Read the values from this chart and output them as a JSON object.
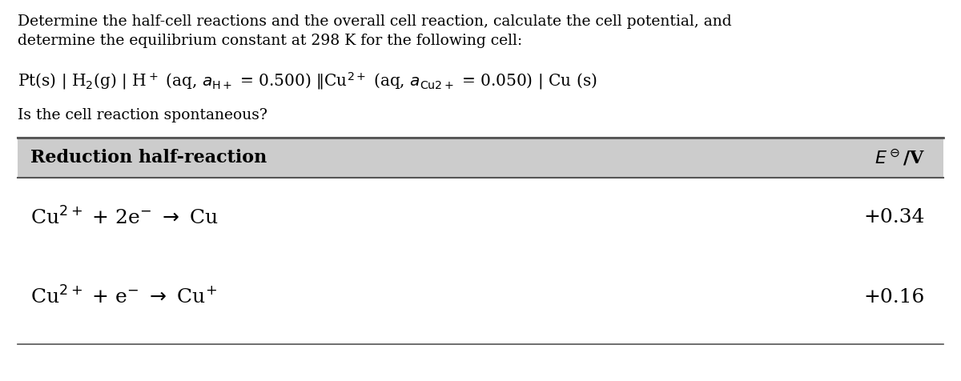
{
  "title_line1": "Determine the half-cell reactions and the overall cell reaction, calculate the cell potential, and",
  "title_line2": "determine the equilibrium constant at 298 K for the following cell:",
  "question": "Is the cell reaction spontaneous?",
  "table_header_left": "Reduction half-reaction",
  "table_header_right": "$E^\\ominus$/V",
  "row1_reaction": "Cu$^{2+}$ + 2e$^{-}$ $\\rightarrow$ Cu",
  "row1_value": "+0.34",
  "row2_reaction": "Cu$^{2+}$ + e$^{-}$ $\\rightarrow$ Cu$^{+}$",
  "row2_value": "+0.16",
  "header_bg": "#cccccc",
  "row_bg": "#ffffff",
  "text_color": "#000000",
  "border_color": "#555555",
  "bg_color": "#ffffff",
  "font_size_body": 13.5,
  "font_size_cell": 14.5,
  "font_size_header": 16,
  "font_size_table_row": 18
}
